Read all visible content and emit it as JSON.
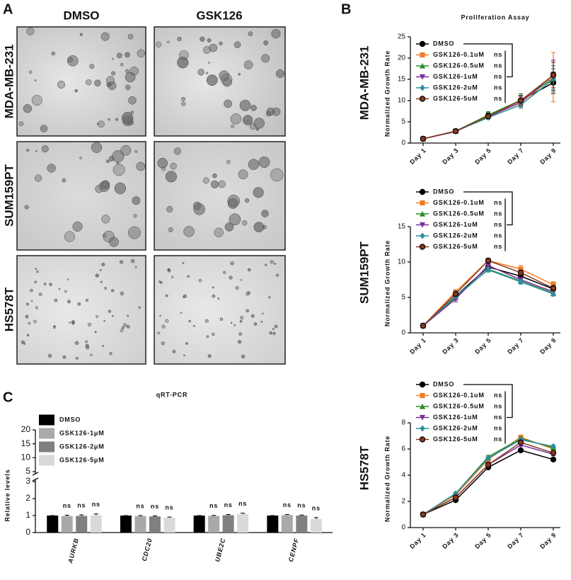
{
  "panel_letters": [
    "A",
    "B",
    "C"
  ],
  "microscopy": {
    "columns": [
      "DMSO",
      "GSK126"
    ],
    "rows": [
      "MDA-MB-231",
      "SUM159PT",
      "HS578T"
    ]
  },
  "chart_data": [
    {
      "type": "line",
      "title": "Proliferation Assay",
      "row_label": "MDA-MB-231",
      "y_label": "Normalized Growth Rate",
      "categories": [
        "Day 1",
        "Day 3",
        "Day 5",
        "Day 7",
        "Day 9"
      ],
      "ylim": [
        0,
        25
      ],
      "yticks": [
        0,
        5,
        10,
        15,
        20,
        25
      ],
      "series": [
        {
          "name": "DMSO",
          "color": "#000000",
          "marker": "circle",
          "values": [
            1,
            2.8,
            6.5,
            10,
            14.2
          ],
          "errors": [
            0.1,
            0.2,
            0.6,
            1.2,
            2.5
          ]
        },
        {
          "name": "GSK126-0.1uM",
          "color": "#f07c28",
          "marker": "square",
          "annotation": "ns",
          "values": [
            1,
            2.8,
            6.3,
            9.5,
            15.5
          ],
          "errors": [
            0.1,
            0.2,
            0.5,
            1.0,
            5.8
          ]
        },
        {
          "name": "GSK126-0.5uM",
          "color": "#2e8b2e",
          "marker": "triangle-up",
          "annotation": "ns",
          "values": [
            1,
            2.8,
            6.6,
            10.1,
            15.2
          ],
          "errors": [
            0.1,
            0.2,
            0.8,
            1.5,
            3
          ]
        },
        {
          "name": "GSK126-1uM",
          "color": "#7b2d9e",
          "marker": "triangle-down",
          "annotation": "ns",
          "values": [
            1,
            2.7,
            6.2,
            9.6,
            16
          ],
          "errors": [
            0.1,
            0.2,
            0.5,
            1.0,
            3.5
          ]
        },
        {
          "name": "GSK126-2uM",
          "color": "#2a8f9e",
          "marker": "diamond",
          "annotation": "ns",
          "values": [
            1,
            2.8,
            6.0,
            9.0,
            15
          ],
          "errors": [
            0.1,
            0.2,
            0.4,
            0.8,
            2.5
          ]
        },
        {
          "name": "GSK126-5uM",
          "color": "#8b3a1e",
          "marker": "circle-outline",
          "annotation": "ns",
          "values": [
            1,
            2.8,
            6.3,
            10,
            16
          ],
          "errors": [
            0.1,
            0.2,
            0.5,
            1.0,
            3
          ]
        }
      ]
    },
    {
      "type": "line",
      "row_label": "SUM159PT",
      "y_label": "Normalized Growth Rate",
      "categories": [
        "Day 1",
        "Day 3",
        "Day 5",
        "Day 7",
        "Day 9"
      ],
      "ylim": [
        0,
        15
      ],
      "yticks": [
        0,
        5,
        10,
        15
      ],
      "series": [
        {
          "name": "DMSO",
          "color": "#000000",
          "marker": "circle",
          "values": [
            1,
            5.2,
            9.3,
            8,
            6.2
          ],
          "errors": [
            0.05,
            0.3,
            0.3,
            0.4,
            0.3
          ]
        },
        {
          "name": "GSK126-0.1uM",
          "color": "#f07c28",
          "marker": "square",
          "annotation": "ns",
          "values": [
            1,
            5.8,
            10.2,
            9,
            6.8
          ],
          "errors": [
            0.05,
            0.3,
            0.3,
            0.5,
            0.4
          ]
        },
        {
          "name": "GSK126-0.5uM",
          "color": "#2e8b2e",
          "marker": "triangle-up",
          "annotation": "ns",
          "values": [
            1,
            5,
            9,
            7.3,
            5.6
          ],
          "errors": [
            0.05,
            0.3,
            0.3,
            0.3,
            0.3
          ]
        },
        {
          "name": "GSK126-1uM",
          "color": "#7b2d9e",
          "marker": "triangle-down",
          "annotation": "ns",
          "values": [
            1,
            4.8,
            9.5,
            7.5,
            5.8
          ],
          "errors": [
            0.05,
            0.4,
            0.3,
            0.3,
            0.3
          ]
        },
        {
          "name": "GSK126-2uM",
          "color": "#2a8f9e",
          "marker": "diamond",
          "annotation": "ns",
          "values": [
            1,
            5.2,
            8.9,
            7.2,
            5.5
          ],
          "errors": [
            0.05,
            0.3,
            0.3,
            0.3,
            0.3
          ]
        },
        {
          "name": "GSK126-5uM",
          "color": "#8b3a1e",
          "marker": "circle-outline",
          "annotation": "ns",
          "values": [
            1,
            5.5,
            10.2,
            8.5,
            6.3
          ],
          "errors": [
            0.05,
            0.3,
            0.3,
            0.4,
            0.4
          ]
        }
      ]
    },
    {
      "type": "line",
      "row_label": "HS578T",
      "y_label": "Normalized Growth Rate",
      "categories": [
        "Day 1",
        "Day 3",
        "Day 5",
        "Day 7",
        "Day 9"
      ],
      "ylim": [
        0,
        8
      ],
      "yticks": [
        0,
        2,
        4,
        6,
        8
      ],
      "series": [
        {
          "name": "DMSO",
          "color": "#000000",
          "marker": "circle",
          "values": [
            1,
            2.1,
            4.6,
            5.9,
            5.2
          ],
          "errors": [
            0.03,
            0.1,
            0.1,
            0.1,
            0.1
          ]
        },
        {
          "name": "GSK126-0.1uM",
          "color": "#f07c28",
          "marker": "square",
          "annotation": "ns",
          "values": [
            1,
            2.5,
            5.2,
            6.9,
            6
          ],
          "errors": [
            0.03,
            0.1,
            0.1,
            0.1,
            0.1
          ]
        },
        {
          "name": "GSK126-0.5uM",
          "color": "#2e8b2e",
          "marker": "triangle-up",
          "annotation": "ns",
          "values": [
            1,
            2.6,
            5.4,
            6.8,
            6.1
          ],
          "errors": [
            0.03,
            0.1,
            0.1,
            0.1,
            0.1
          ]
        },
        {
          "name": "GSK126-1uM",
          "color": "#7b2d9e",
          "marker": "triangle-down",
          "annotation": "ns",
          "values": [
            1,
            2.3,
            4.8,
            6.3,
            5.6
          ],
          "errors": [
            0.03,
            0.1,
            0.1,
            0.1,
            0.1
          ]
        },
        {
          "name": "GSK126-2uM",
          "color": "#2a8f9e",
          "marker": "diamond",
          "annotation": "ns",
          "values": [
            1,
            2.6,
            5.3,
            6.7,
            6.2
          ],
          "errors": [
            0.03,
            0.1,
            0.1,
            0.1,
            0.1
          ]
        },
        {
          "name": "GSK126-5uM",
          "color": "#8b3a1e",
          "marker": "circle-outline",
          "annotation": "ns",
          "values": [
            1,
            2.3,
            4.8,
            6.5,
            5.7
          ],
          "errors": [
            0.03,
            0.1,
            0.1,
            0.1,
            0.1
          ]
        }
      ]
    },
    {
      "type": "bar",
      "title": "qRT-PCR",
      "y_label": "Relative levels",
      "categories": [
        "AURKB",
        "CDC20",
        "UBE2C",
        "CENPF"
      ],
      "ylim": [
        0,
        20
      ],
      "ybreak": [
        3,
        5
      ],
      "yticks": [
        0,
        1,
        2,
        3,
        5,
        10,
        15,
        20
      ],
      "series": [
        {
          "name": "DMSO",
          "color": "#000000",
          "values": [
            1,
            1,
            1,
            1
          ],
          "errors": [
            0,
            0,
            0,
            0
          ]
        },
        {
          "name": "GSK126-1μM",
          "color": "#a9a9a9",
          "values": [
            0.97,
            0.97,
            0.98,
            1.03
          ],
          "errors": [
            0.05,
            0.03,
            0.03,
            0.03
          ],
          "annotations": [
            "ns",
            "ns",
            "ns",
            "ns"
          ]
        },
        {
          "name": "GSK126-2μM",
          "color": "#808080",
          "values": [
            0.98,
            0.95,
            1.02,
            1.0
          ],
          "errors": [
            0.06,
            0.03,
            0.04,
            0.03
          ],
          "annotations": [
            "ns",
            "ns",
            "ns",
            "ns"
          ]
        },
        {
          "name": "GSK126-5μM",
          "color": "#d9d9d9",
          "values": [
            1.02,
            0.88,
            1.1,
            0.8
          ],
          "errors": [
            0.08,
            0.03,
            0.04,
            0.08
          ],
          "annotations": [
            "ns",
            "ns",
            "ns",
            "ns"
          ]
        }
      ]
    }
  ]
}
